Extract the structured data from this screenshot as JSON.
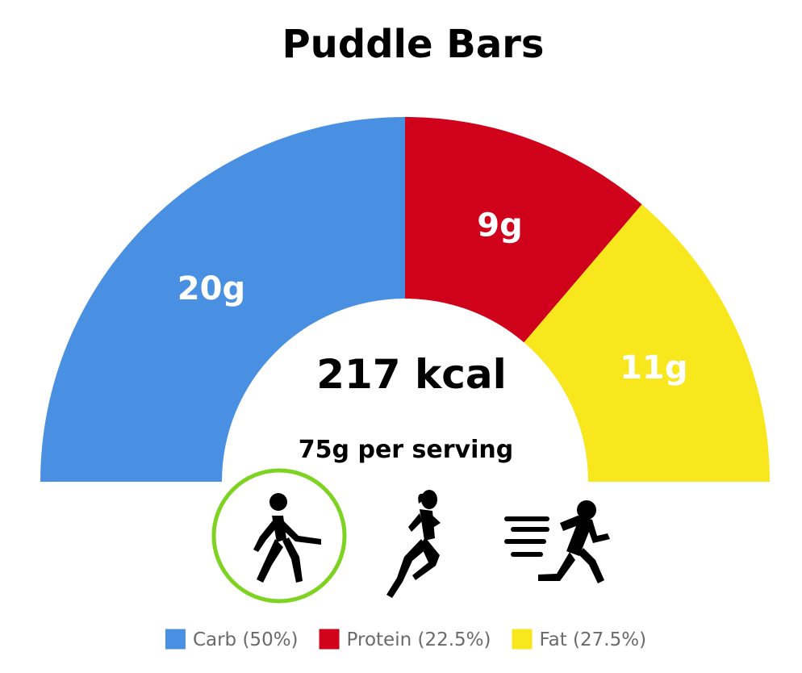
{
  "chart_data": {
    "type": "pie",
    "title": "Puddle Bars",
    "center_value": "217 kcal",
    "center_subtitle": "75g per serving",
    "slices": [
      {
        "name": "Carb",
        "grams": 20,
        "label": "20g",
        "percent": 50,
        "legend": "Carb (50%)",
        "color": "#4a90e2"
      },
      {
        "name": "Protein",
        "grams": 9,
        "label": "9g",
        "percent": 22.5,
        "legend": "Protein (22.5%)",
        "color": "#d0021b"
      },
      {
        "name": "Fat",
        "grams": 11,
        "label": "11g",
        "percent": 27.5,
        "legend": "Fat (27.5%)",
        "color": "#f8e71c"
      }
    ],
    "legend_position": "bottom",
    "activity_icons": [
      {
        "icon": "walking-person-icon",
        "selected": true
      },
      {
        "icon": "running-woman-icon",
        "selected": false
      },
      {
        "icon": "sprinting-person-icon",
        "selected": false
      }
    ],
    "selection_ring_color": "#7ed321"
  }
}
